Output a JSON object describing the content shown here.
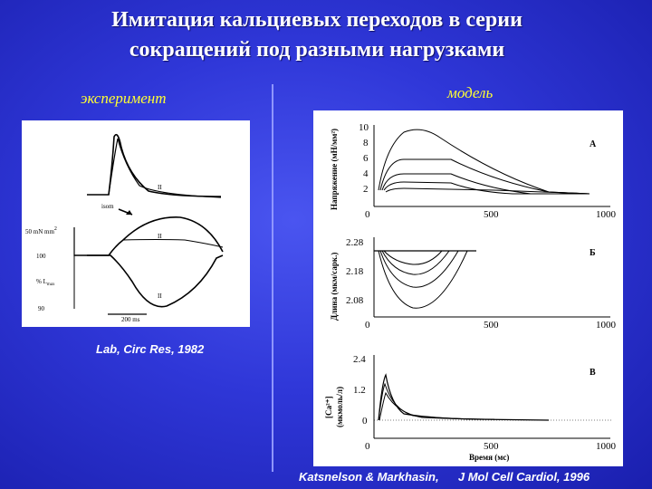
{
  "title_line1": "Имитация кальциевых переходов в серии",
  "title_line2": "сокращений под разными нагрузками",
  "left_label": "эксперимент",
  "right_label": "модель",
  "left_citation": "Lab, Circ Res, 1982",
  "bottom_citation_authors": "Katsnelson & Markhasin,",
  "bottom_citation_journal": "J Mol Cell Cardiol, 1996",
  "experiment": {
    "label_II_1": "II",
    "label_isom": "isom",
    "label_II_2": "II",
    "label_II_3": "II",
    "label_force": "50 mN mm",
    "label_force_sup": "2",
    "label_100": "100",
    "label_lmax": "% L",
    "label_lmax_sub": "max",
    "label_90": "90",
    "scale_label": "200 ms"
  },
  "model": {
    "panel_a": {
      "letter": "A",
      "ylabel": "Напряжение (мН/мм²)",
      "yticks": [
        "10",
        "8",
        "6",
        "4",
        "2"
      ],
      "xticks": [
        "0",
        "500",
        "1000"
      ]
    },
    "panel_b": {
      "letter": "Б",
      "ylabel": "Длина (мкм/сарк.)",
      "yticks": [
        "2.28",
        "2.18",
        "2.08"
      ],
      "xticks": [
        "0",
        "500",
        "1000"
      ]
    },
    "panel_c": {
      "letter": "В",
      "ylabel_main": "[Ca²⁺]",
      "ylabel_sub": "(мкмоль/л)",
      "yticks": [
        "2.4",
        "1.2",
        "0"
      ],
      "xticks": [
        "0",
        "500",
        "1000"
      ],
      "xlabel": "Время (мс)"
    }
  }
}
